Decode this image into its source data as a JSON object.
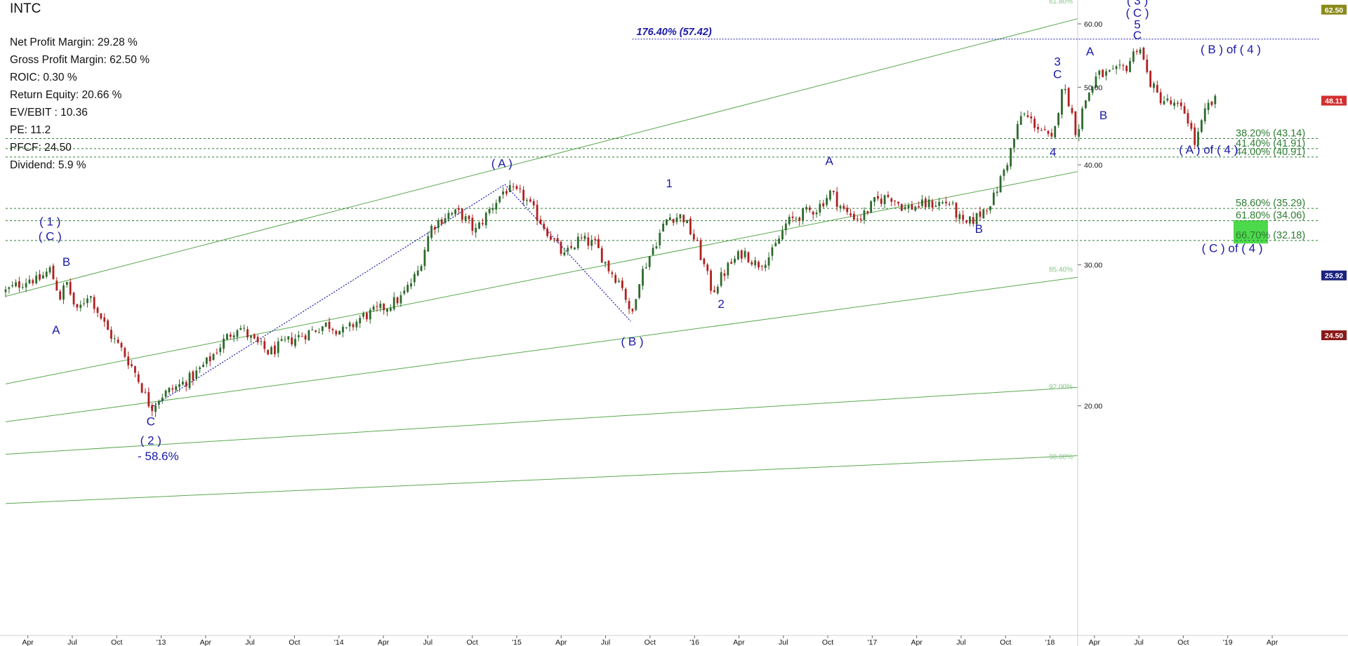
{
  "ticker": "INTC",
  "stats": [
    "Net Profit Margin: 29.28 %",
    "Gross Profit Margin: 62.50 %",
    "ROIC: 0.30 %",
    "Return Equity: 20.66 %",
    "EV/EBIT : 10.36",
    "PE: 11.2",
    "PFCF: 24.50",
    "Dividend: 5.9 %"
  ],
  "colors": {
    "wave_label": "#1a1aa8",
    "fib_line": "#2e7d32",
    "trend_line": "#5aa84f",
    "target_line": "#1a1aa8",
    "up_candle": "#2d6a2d",
    "down_candle": "#b02020",
    "price_tag_olive": "#8a8a1a",
    "price_tag_red": "#d32f2f",
    "price_tag_navy": "#1a237e",
    "price_tag_darkred": "#8b1a1a",
    "target_box": "#4cd94c"
  },
  "chart_data": {
    "type": "candlestick",
    "scale": "log",
    "ylim": [
      14.5,
      64
    ],
    "y_ticks": [
      {
        "value": 20,
        "label": "20.00"
      },
      {
        "value": 30,
        "label": "30.00"
      },
      {
        "value": 40,
        "label": "40.00"
      },
      {
        "value": 50,
        "label": "50.00"
      },
      {
        "value": 60,
        "label": "60.00"
      }
    ],
    "x_ticks": [
      {
        "t": 0,
        "label": "Apr"
      },
      {
        "t": 3,
        "label": "Jul"
      },
      {
        "t": 6,
        "label": "Oct"
      },
      {
        "t": 9,
        "label": "'13"
      },
      {
        "t": 12,
        "label": "Apr"
      },
      {
        "t": 15,
        "label": "Jul"
      },
      {
        "t": 18,
        "label": "Oct"
      },
      {
        "t": 21,
        "label": "'14"
      },
      {
        "t": 24,
        "label": "Apr"
      },
      {
        "t": 27,
        "label": "Jul"
      },
      {
        "t": 30,
        "label": "Oct"
      },
      {
        "t": 33,
        "label": "'15"
      },
      {
        "t": 36,
        "label": "Apr"
      },
      {
        "t": 39,
        "label": "Jul"
      },
      {
        "t": 42,
        "label": "Oct"
      },
      {
        "t": 45,
        "label": "'16"
      },
      {
        "t": 48,
        "label": "Apr"
      },
      {
        "t": 51,
        "label": "Jul"
      },
      {
        "t": 54,
        "label": "Oct"
      },
      {
        "t": 57,
        "label": "'17"
      },
      {
        "t": 60,
        "label": "Apr"
      },
      {
        "t": 63,
        "label": "Jul"
      },
      {
        "t": 66,
        "label": "Oct"
      },
      {
        "t": 69,
        "label": "'18"
      },
      {
        "t": 72,
        "label": "Apr"
      },
      {
        "t": 75,
        "label": "Jul"
      },
      {
        "t": 78,
        "label": "Oct"
      },
      {
        "t": 81,
        "label": "'19"
      },
      {
        "t": 84,
        "label": "Apr"
      }
    ],
    "price_path": [
      [
        -1.5,
        27.8
      ],
      [
        0.2,
        28.9
      ],
      [
        0.6,
        28.6
      ],
      [
        1.5,
        29.6
      ],
      [
        2.2,
        27.3
      ],
      [
        2.6,
        28.6
      ],
      [
        3.3,
        26.1
      ],
      [
        4.1,
        27.7
      ],
      [
        5.4,
        24.8
      ],
      [
        6.4,
        23.4
      ],
      [
        7.2,
        22.1
      ],
      [
        8.3,
        19.9
      ],
      [
        9.0,
        20.6
      ],
      [
        10.2,
        21.2
      ],
      [
        11.2,
        21.8
      ],
      [
        12.3,
        22.9
      ],
      [
        13.3,
        24.2
      ],
      [
        14.2,
        25.2
      ],
      [
        15.2,
        24.1
      ],
      [
        16.3,
        23.3
      ],
      [
        17.4,
        24.0
      ],
      [
        18.5,
        24.5
      ],
      [
        20.2,
        25.3
      ],
      [
        21.4,
        24.7
      ],
      [
        22.5,
        25.8
      ],
      [
        24.2,
        26.6
      ],
      [
        25.2,
        27.3
      ],
      [
        26.3,
        29.3
      ],
      [
        27.2,
        33.4
      ],
      [
        28.3,
        34.7
      ],
      [
        29.2,
        34.8
      ],
      [
        30.2,
        33.0
      ],
      [
        31.2,
        35.2
      ],
      [
        32.2,
        37.3
      ],
      [
        33.4,
        36.6
      ],
      [
        34.3,
        34.7
      ],
      [
        35.2,
        32.8
      ],
      [
        36.2,
        30.7
      ],
      [
        37.2,
        32.3
      ],
      [
        38.3,
        31.8
      ],
      [
        39.2,
        29.7
      ],
      [
        40.2,
        28.2
      ],
      [
        40.7,
        25.5
      ],
      [
        41.2,
        28.6
      ],
      [
        42.3,
        31.8
      ],
      [
        43.2,
        34.4
      ],
      [
        44.2,
        34.5
      ],
      [
        45.2,
        31.7
      ],
      [
        46.2,
        27.8
      ],
      [
        47.3,
        29.9
      ],
      [
        48.3,
        31.2
      ],
      [
        49.2,
        30.0
      ],
      [
        50.2,
        30.9
      ],
      [
        51.2,
        33.8
      ],
      [
        52.2,
        34.7
      ],
      [
        53.3,
        35.3
      ],
      [
        54.2,
        37.0
      ],
      [
        55.2,
        34.8
      ],
      [
        56.2,
        34.3
      ],
      [
        57.2,
        36.0
      ],
      [
        58.2,
        36.6
      ],
      [
        59.2,
        35.3
      ],
      [
        60.3,
        35.6
      ],
      [
        61.2,
        35.8
      ],
      [
        62.2,
        35.9
      ],
      [
        63.2,
        33.5
      ],
      [
        64.2,
        34.6
      ],
      [
        65.2,
        36.4
      ],
      [
        66.2,
        40.8
      ],
      [
        67.1,
        46.4
      ],
      [
        68.2,
        44.6
      ],
      [
        69.2,
        42.6
      ],
      [
        69.8,
        50.3
      ],
      [
        70.3,
        47.9
      ],
      [
        70.8,
        43.6
      ],
      [
        71.3,
        47.8
      ],
      [
        72.2,
        51.8
      ],
      [
        73.2,
        51.9
      ],
      [
        74.2,
        53.1
      ],
      [
        75.0,
        56.8
      ],
      [
        75.6,
        51.5
      ],
      [
        76.3,
        48.6
      ],
      [
        77.2,
        47.6
      ],
      [
        78.2,
        46.4
      ],
      [
        78.8,
        42.4
      ],
      [
        79.6,
        47.3
      ],
      [
        80.2,
        48.1
      ]
    ],
    "wave_labels": [
      {
        "t": 1.5,
        "y": 33.6,
        "text": "( 1 )"
      },
      {
        "t": 1.5,
        "y": 32.2,
        "text": "( C )"
      },
      {
        "t": 2.6,
        "y": 29.9,
        "text": "B"
      },
      {
        "t": 1.9,
        "y": 24.6,
        "text": "A"
      },
      {
        "t": 8.3,
        "y": 18.9,
        "text": "C"
      },
      {
        "t": 8.3,
        "y": 17.9,
        "text": "( 2 )"
      },
      {
        "t": 8.8,
        "y": 17.1,
        "text": "- 58.6%"
      },
      {
        "t": 32.0,
        "y": 39.7,
        "text": "( A )"
      },
      {
        "t": 40.8,
        "y": 23.8,
        "text": "( B )"
      },
      {
        "t": 43.3,
        "y": 37.5,
        "text": "1"
      },
      {
        "t": 46.8,
        "y": 26.5,
        "text": "2"
      },
      {
        "t": 54.1,
        "y": 40.0,
        "text": "A"
      },
      {
        "t": 64.2,
        "y": 32.9,
        "text": "B"
      },
      {
        "t": 69.2,
        "y": 41.0,
        "text": "4"
      },
      {
        "t": 69.5,
        "y": 53.2,
        "text": "3"
      },
      {
        "t": 69.5,
        "y": 51.3,
        "text": "C"
      },
      {
        "t": 71.7,
        "y": 54.8,
        "text": "A"
      },
      {
        "t": 72.6,
        "y": 45.6,
        "text": "B"
      },
      {
        "t": 74.9,
        "y": 63.4,
        "text": "( 3 )"
      },
      {
        "t": 74.9,
        "y": 61.2,
        "text": "( C )"
      },
      {
        "t": 74.9,
        "y": 59.2,
        "text": "5"
      },
      {
        "t": 74.9,
        "y": 57.4,
        "text": "C"
      },
      {
        "t": 81.2,
        "y": 55.1,
        "text": "( B )  of  ( 4 )"
      },
      {
        "t": 79.7,
        "y": 41.3,
        "text": "( A )  of  ( 4 )"
      },
      {
        "t": 81.3,
        "y": 31.1,
        "text": "( C )  of  ( 4 )"
      }
    ],
    "fib_levels": [
      {
        "value": 43.14,
        "label": "38.20% (43.14)"
      },
      {
        "value": 41.91,
        "label": "41.40% (41.91)"
      },
      {
        "value": 40.91,
        "label": "44.00% (40.91)"
      },
      {
        "value": 35.29,
        "label": "58.60% (35.29)"
      },
      {
        "value": 34.06,
        "label": "61.80% (34.06)"
      },
      {
        "value": 32.18,
        "label": "66.70% (32.18)"
      }
    ],
    "target_level": {
      "value": 57.42,
      "label": "176.40% (57.42)",
      "t_start": 40.8
    },
    "target_box": {
      "low": 31.9,
      "high": 34.1
    },
    "channel_lines": [
      {
        "t1": -1.5,
        "y1": 27.4,
        "t2": 80.2,
        "y2": 67.5,
        "label": "61.80%"
      },
      {
        "t1": -1.5,
        "y1": 21.3,
        "t2": 85.0,
        "y2": 44.2,
        "label": ""
      },
      {
        "t1": -1.5,
        "y1": 19.1,
        "t2": 85.0,
        "y2": 31.4,
        "label": "85.40%"
      },
      {
        "t1": -1.5,
        "y1": 17.4,
        "t2": 85.0,
        "y2": 21.9,
        "label": "92.00%"
      },
      {
        "t1": -1.5,
        "y1": 15.1,
        "t2": 85.0,
        "y2": 17.8,
        "label": "98.00%"
      }
    ],
    "wave_connectors": [
      [
        [
          8.3,
          19.9
        ],
        [
          32.2,
          37.8
        ],
        [
          40.7,
          25.5
        ]
      ]
    ],
    "price_tags": [
      {
        "value": 62.5,
        "label": "62.50",
        "color": "olive"
      },
      {
        "value": 48.11,
        "label": "48.11",
        "color": "red"
      },
      {
        "value": 29.1,
        "label": "25.92",
        "color": "navy"
      },
      {
        "value": 24.5,
        "label": "24.50",
        "color": "darkred"
      }
    ]
  }
}
